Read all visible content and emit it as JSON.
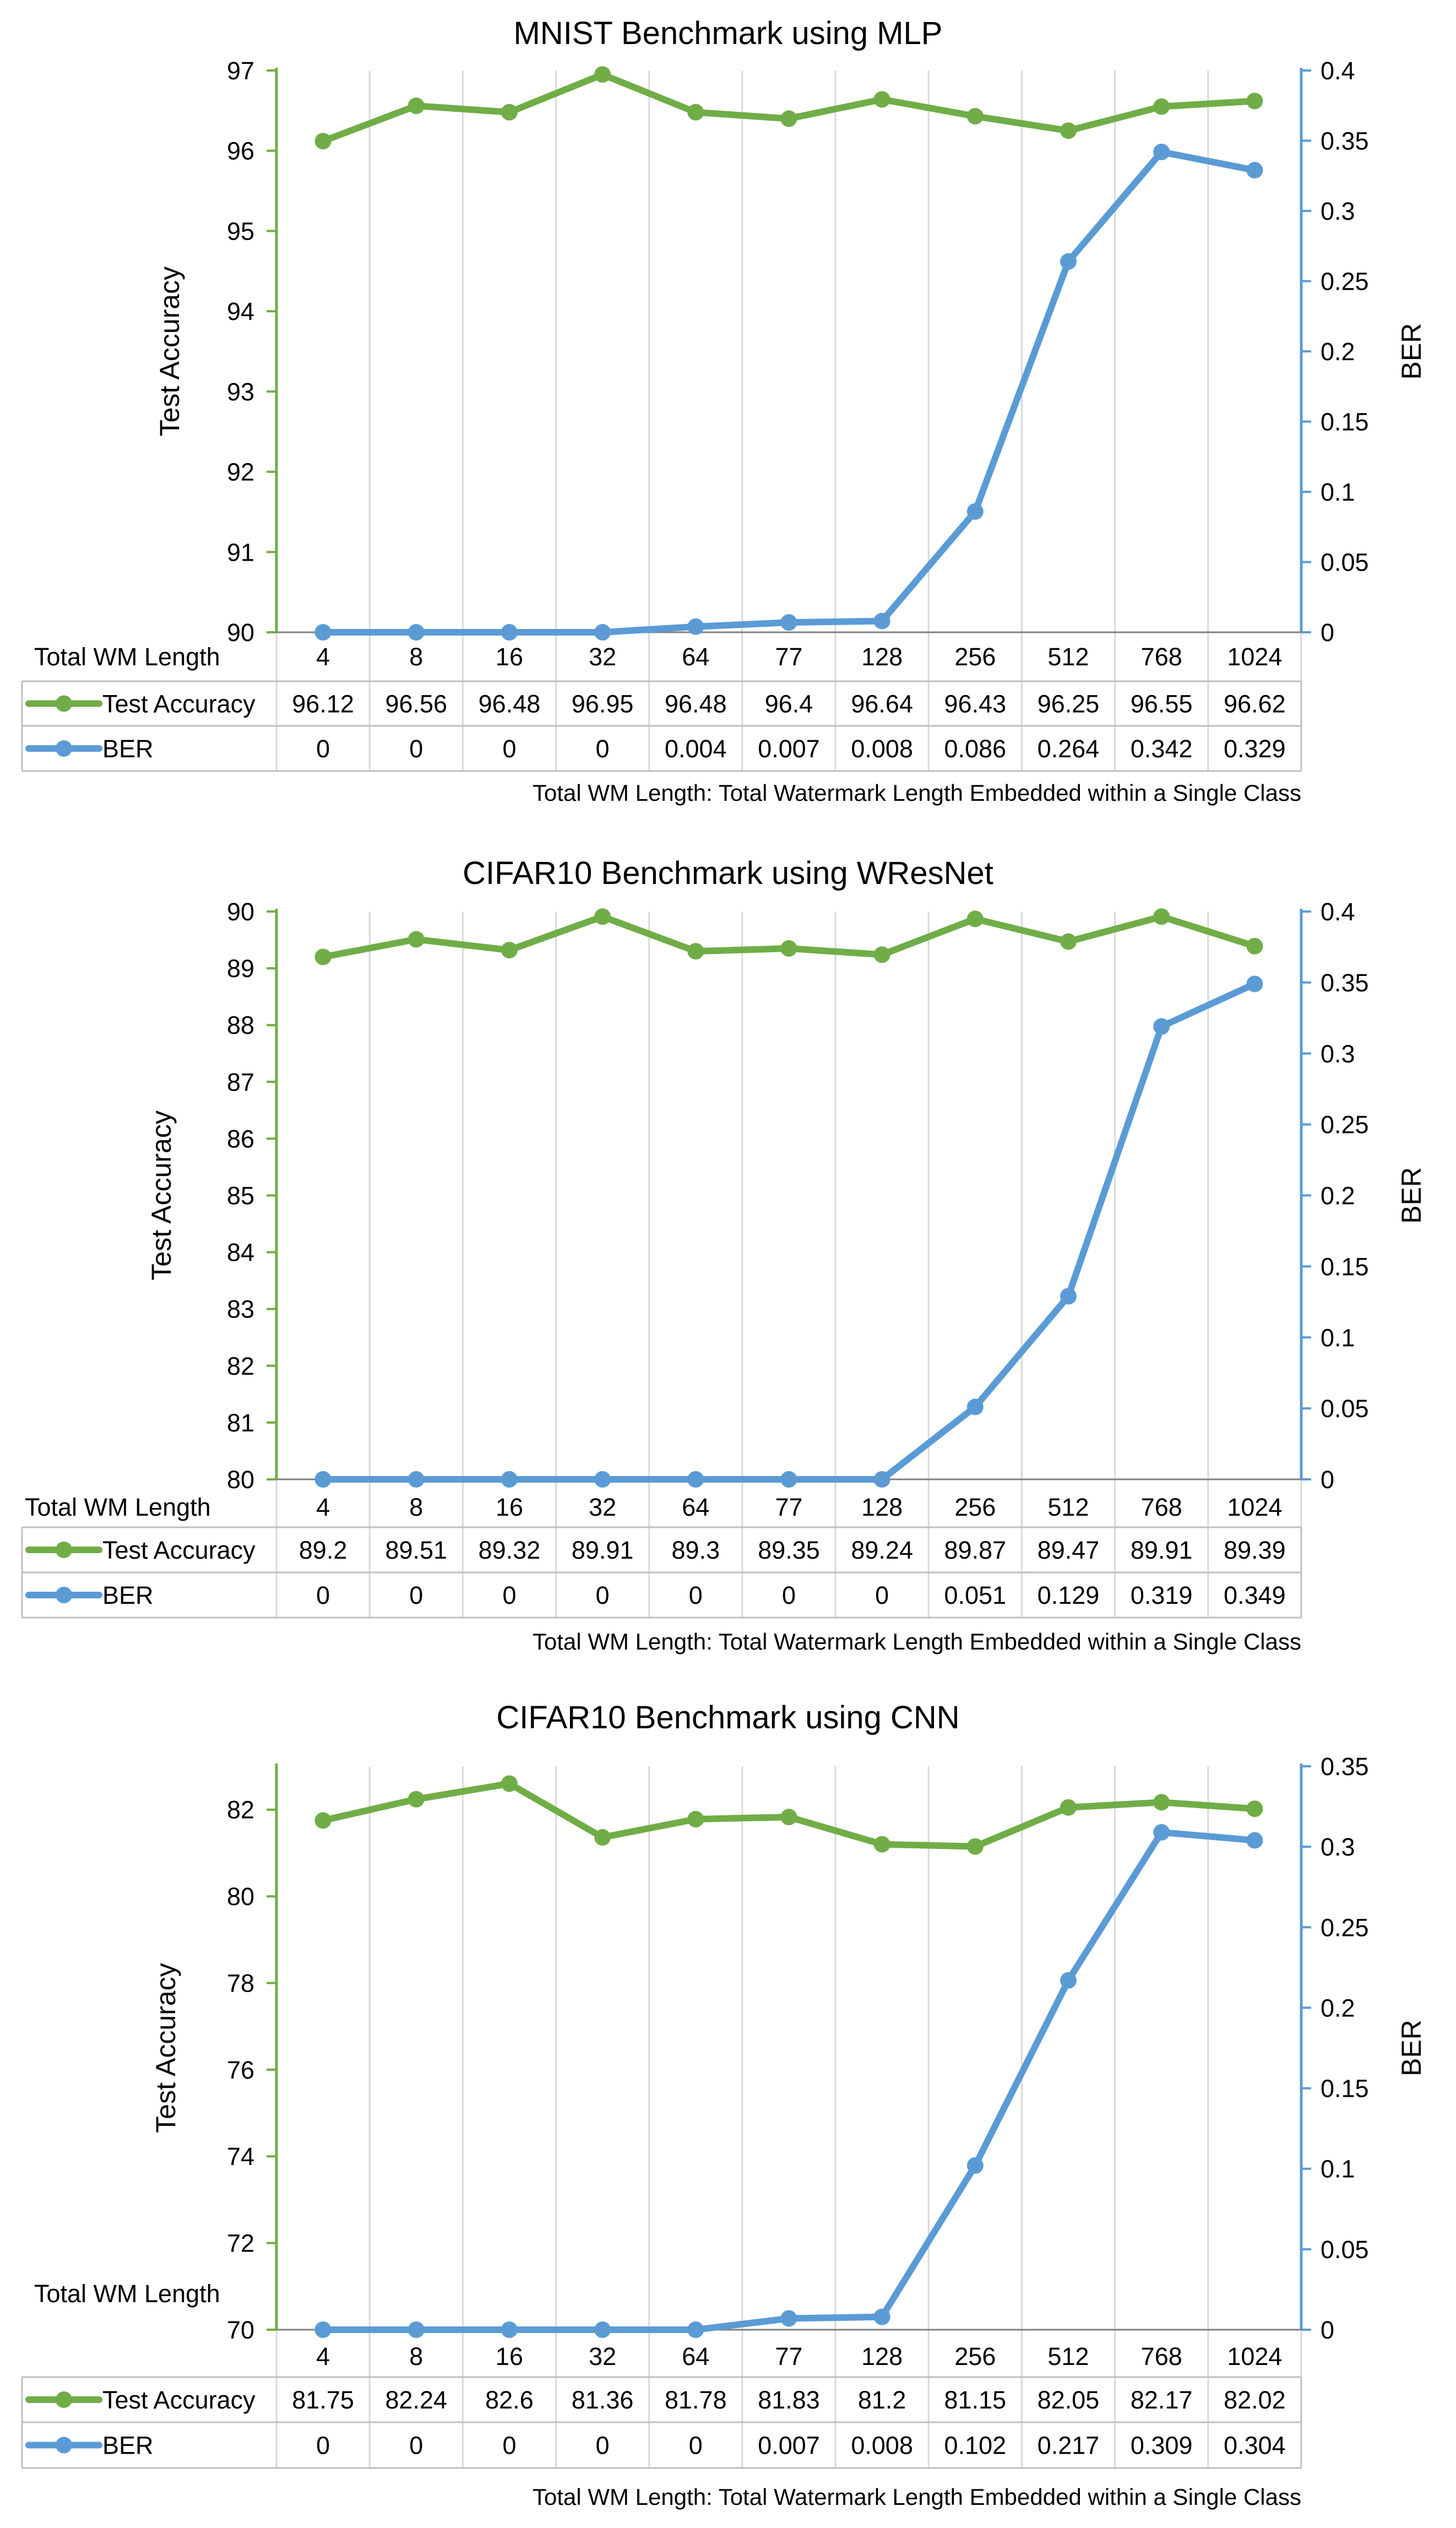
{
  "colors": {
    "accuracy": "#70AD47",
    "ber": "#5B9BD5",
    "grid": "#D9D9D9",
    "table_border": "#BFBFBF"
  },
  "legend": {
    "accuracy_label": "Test Accuracy",
    "ber_label": "BER",
    "row_header": "Total WM Length"
  },
  "chart_data": [
    {
      "type": "line",
      "title": "MNIST Benchmark using  MLP",
      "categories": [
        "4",
        "8",
        "16",
        "32",
        "64",
        "77",
        "128",
        "256",
        "512",
        "768",
        "1024"
      ],
      "ylabel": "Test Accuracy",
      "y2label": "BER",
      "ylim": [
        90,
        97
      ],
      "yticks": [
        "90",
        "91",
        "92",
        "93",
        "94",
        "95",
        "96",
        "97"
      ],
      "y2lim": [
        0,
        0.4
      ],
      "y2ticks": [
        "0",
        "0.05",
        "0.1",
        "0.15",
        "0.2",
        "0.25",
        "0.3",
        "0.35",
        "0.4"
      ],
      "xlabel": "Total WM Length",
      "footnote": "Total WM Length: Total Watermark Length Embedded within a Single Class",
      "series": [
        {
          "name": "Test Accuracy",
          "axis": "left",
          "values": [
            96.12,
            96.56,
            96.48,
            96.95,
            96.48,
            96.4,
            96.64,
            96.43,
            96.25,
            96.55,
            96.62
          ],
          "labels": [
            "96.12",
            "96.56",
            "96.48",
            "96.95",
            "96.48",
            "96.4",
            "96.64",
            "96.43",
            "96.25",
            "96.55",
            "96.62"
          ]
        },
        {
          "name": "BER",
          "axis": "right",
          "values": [
            0,
            0,
            0,
            0,
            0.004,
            0.007,
            0.008,
            0.086,
            0.264,
            0.342,
            0.329
          ],
          "labels": [
            "0",
            "0",
            "0",
            "0",
            "0.004",
            "0.007",
            "0.008",
            "0.086",
            "0.264",
            "0.342",
            "0.329"
          ]
        }
      ]
    },
    {
      "type": "line",
      "title": "CIFAR10 Benchmark using WResNet",
      "categories": [
        "4",
        "8",
        "16",
        "32",
        "64",
        "77",
        "128",
        "256",
        "512",
        "768",
        "1024"
      ],
      "ylabel": "Test Accuracy",
      "y2label": "BER",
      "ylim": [
        80,
        90
      ],
      "yticks": [
        "80",
        "81",
        "82",
        "83",
        "84",
        "85",
        "86",
        "87",
        "88",
        "89",
        "90"
      ],
      "y2lim": [
        0,
        0.4
      ],
      "y2ticks": [
        "0",
        "0.05",
        "0.1",
        "0.15",
        "0.2",
        "0.25",
        "0.3",
        "0.35",
        "0.4"
      ],
      "xlabel": "Total WM Length",
      "footnote": "Total WM Length: Total Watermark Length Embedded within a Single Class",
      "series": [
        {
          "name": "Test Accuracy",
          "axis": "left",
          "values": [
            89.2,
            89.51,
            89.32,
            89.91,
            89.3,
            89.35,
            89.24,
            89.87,
            89.47,
            89.91,
            89.39
          ],
          "labels": [
            "89.2",
            "89.51",
            "89.32",
            "89.91",
            "89.3",
            "89.35",
            "89.24",
            "89.87",
            "89.47",
            "89.91",
            "89.39"
          ]
        },
        {
          "name": "BER",
          "axis": "right",
          "values": [
            0,
            0,
            0,
            0,
            0,
            0,
            0,
            0.051,
            0.129,
            0.319,
            0.349
          ],
          "labels": [
            "0",
            "0",
            "0",
            "0",
            "0",
            "0",
            "0",
            "0.051",
            "0.129",
            "0.319",
            "0.349"
          ]
        }
      ]
    },
    {
      "type": "line",
      "title": "CIFAR10 Benchmark using  CNN",
      "categories": [
        "4",
        "8",
        "16",
        "32",
        "64",
        "77",
        "128",
        "256",
        "512",
        "768",
        "1024"
      ],
      "ylabel": "Test Accuracy",
      "y2label": "BER",
      "ylim": [
        70,
        83
      ],
      "yticks": [
        "70",
        "72",
        "74",
        "76",
        "78",
        "80",
        "82"
      ],
      "y2lim": [
        0,
        0.35
      ],
      "y2ticks": [
        "0",
        "0.05",
        "0.1",
        "0.15",
        "0.2",
        "0.25",
        "0.3",
        "0.35"
      ],
      "xlabel": "Total WM Length",
      "footnote": "Total WM Length: Total Watermark Length Embedded within a Single Class",
      "series": [
        {
          "name": "Test Accuracy",
          "axis": "left",
          "values": [
            81.75,
            82.24,
            82.6,
            81.36,
            81.78,
            81.83,
            81.2,
            81.15,
            82.05,
            82.17,
            82.02
          ],
          "labels": [
            "81.75",
            "82.24",
            "82.6",
            "81.36",
            "81.78",
            "81.83",
            "81.2",
            "81.15",
            "82.05",
            "82.17",
            "82.02"
          ]
        },
        {
          "name": "BER",
          "axis": "right",
          "values": [
            0,
            0,
            0,
            0,
            0,
            0.007,
            0.008,
            0.102,
            0.217,
            0.309,
            0.304
          ],
          "labels": [
            "0",
            "0",
            "0",
            "0",
            "0",
            "0.007",
            "0.008",
            "0.102",
            "0.217",
            "0.309",
            "0.304"
          ]
        }
      ]
    }
  ]
}
